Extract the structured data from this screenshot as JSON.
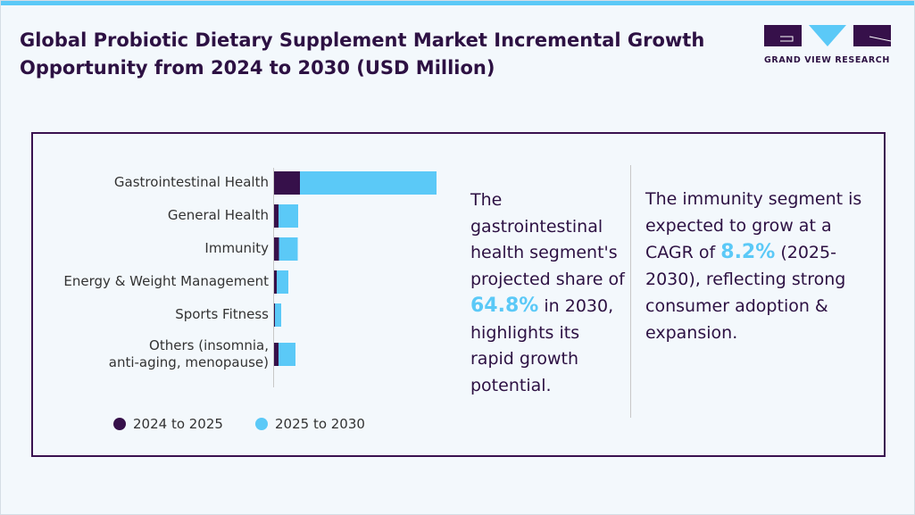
{
  "title": "Global Probiotic Dietary Supplement Market Incremental Growth Opportunity from 2024 to 2030 (USD Million)",
  "logo": {
    "text": "GRAND VIEW RESEARCH"
  },
  "colors": {
    "series1": "#36104a",
    "series2": "#5bc9f7",
    "text": "#2d1143",
    "accent": "#5bc9f7"
  },
  "chart_data": {
    "type": "bar",
    "orientation": "horizontal",
    "stacked": true,
    "categories": [
      "Gastrointestinal Health",
      "General Health",
      "Immunity",
      "Energy & Weight Management",
      "Sports Fitness",
      "Others (insomnia, anti-aging, menopause)"
    ],
    "series": [
      {
        "name": "2024 to 2025",
        "values": [
          29,
          5,
          5.5,
          3,
          1,
          5
        ]
      },
      {
        "name": "2025 to 2030",
        "values": [
          153,
          22,
          21,
          13,
          7,
          19
        ]
      }
    ],
    "grid": false,
    "legend": "bottom"
  },
  "callout1": {
    "pre": "The gastrointestinal health segment's projected share of",
    "value": "64.8%",
    "post": "in 2030, highlights its rapid growth potential."
  },
  "callout2": {
    "pre": "The immunity segment is expected to grow at a CAGR of",
    "value": "8.2%",
    "post": "(2025-2030), reflecting strong consumer adoption & expansion."
  }
}
